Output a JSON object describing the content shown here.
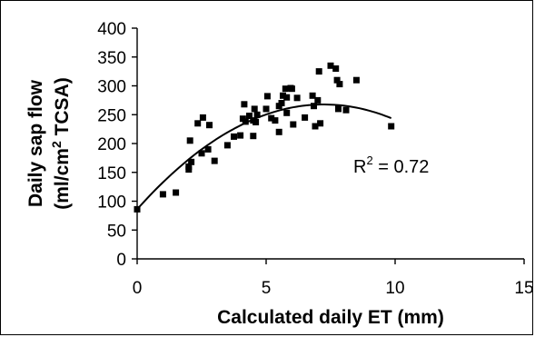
{
  "chart_data": {
    "type": "scatter",
    "title": "",
    "xlabel": "Calculated daily ET (mm)",
    "ylabel_line1": "Daily sap flow",
    "ylabel_line2_pre": "(ml/cm",
    "ylabel_line2_sup": "2",
    "ylabel_line2_post": " TCSA)",
    "xlim": [
      0,
      15
    ],
    "ylim": [
      0,
      400
    ],
    "xticks": [
      0,
      5,
      10,
      15
    ],
    "yticks": [
      0,
      50,
      100,
      150,
      200,
      250,
      300,
      350,
      400
    ],
    "xtick_labels": [
      "0",
      "5",
      "10",
      "15"
    ],
    "ytick_labels": [
      "0",
      "50",
      "100",
      "150",
      "200",
      "250",
      "300",
      "350",
      "400"
    ],
    "grid": false,
    "legend": "none",
    "annotation": {
      "pre": "R",
      "sup": "2",
      "post": " = 0.72"
    },
    "marker_color": "#000000",
    "points": [
      [
        0.0,
        86
      ],
      [
        1.0,
        112
      ],
      [
        1.5,
        115
      ],
      [
        2.0,
        160
      ],
      [
        2.0,
        155
      ],
      [
        2.05,
        205
      ],
      [
        2.1,
        168
      ],
      [
        2.35,
        235
      ],
      [
        2.55,
        245
      ],
      [
        2.5,
        183
      ],
      [
        2.75,
        190
      ],
      [
        2.8,
        232
      ],
      [
        3.0,
        170
      ],
      [
        3.5,
        197
      ],
      [
        3.75,
        212
      ],
      [
        4.0,
        214
      ],
      [
        4.1,
        243
      ],
      [
        4.15,
        268
      ],
      [
        4.2,
        238
      ],
      [
        4.35,
        248
      ],
      [
        4.5,
        240
      ],
      [
        4.5,
        213
      ],
      [
        4.55,
        260
      ],
      [
        4.6,
        237
      ],
      [
        4.65,
        250
      ],
      [
        5.0,
        260
      ],
      [
        5.05,
        282
      ],
      [
        5.2,
        244
      ],
      [
        5.35,
        240
      ],
      [
        5.5,
        265
      ],
      [
        5.5,
        220
      ],
      [
        5.6,
        270
      ],
      [
        5.65,
        283
      ],
      [
        5.75,
        295
      ],
      [
        5.8,
        280
      ],
      [
        5.8,
        253
      ],
      [
        5.95,
        296
      ],
      [
        6.0,
        295
      ],
      [
        6.05,
        233
      ],
      [
        6.2,
        279
      ],
      [
        6.5,
        245
      ],
      [
        6.8,
        283
      ],
      [
        6.85,
        265
      ],
      [
        6.9,
        230
      ],
      [
        7.0,
        275
      ],
      [
        7.05,
        325
      ],
      [
        7.1,
        235
      ],
      [
        7.5,
        335
      ],
      [
        7.7,
        330
      ],
      [
        7.75,
        310
      ],
      [
        7.8,
        260
      ],
      [
        7.85,
        303
      ],
      [
        8.1,
        258
      ],
      [
        8.5,
        310
      ],
      [
        9.85,
        230
      ]
    ],
    "trendline": {
      "type": "polynomial",
      "degree": 2,
      "coefficients": [
        86,
        50.22,
        -3.47
      ],
      "x_range": [
        0,
        9.85
      ]
    }
  }
}
